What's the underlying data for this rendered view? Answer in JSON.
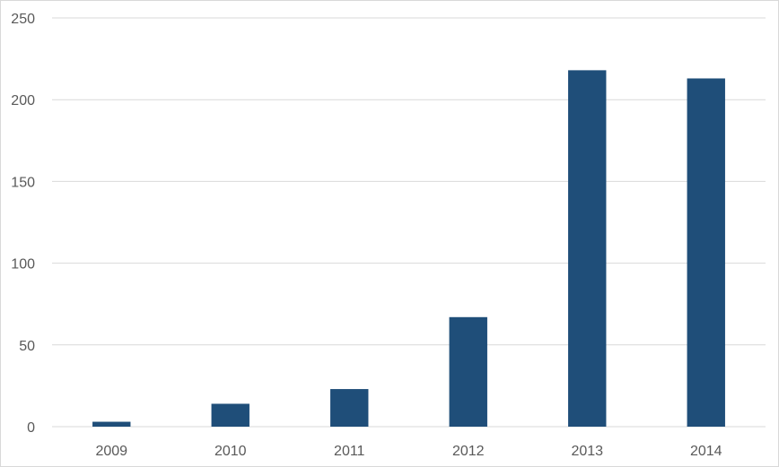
{
  "chart_data": {
    "type": "bar",
    "title": "",
    "xlabel": "",
    "ylabel": "",
    "categories": [
      "2009",
      "2010",
      "2011",
      "2012",
      "2013",
      "2014"
    ],
    "values": [
      3,
      14,
      23,
      67,
      218,
      213
    ],
    "ylim": [
      0,
      250
    ],
    "yticks": [
      0,
      50,
      100,
      150,
      200,
      250
    ],
    "grid": true,
    "legend": "none",
    "bar_color": "#1f4e79"
  }
}
